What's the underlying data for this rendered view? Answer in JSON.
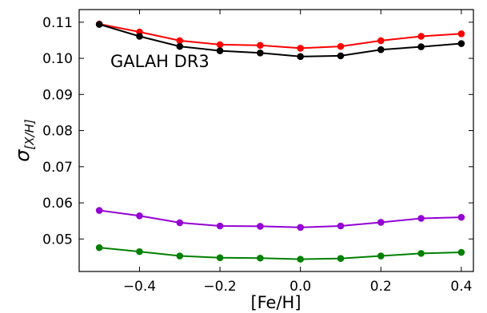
{
  "chart_data": {
    "type": "line",
    "title": "",
    "annotation": "GALAH DR3",
    "xlabel": "[Fe/H]",
    "ylabel": {
      "base": "σ",
      "subscript": "[X/H]"
    },
    "xlim": [
      -0.55,
      0.43
    ],
    "ylim": [
      0.041,
      0.1135
    ],
    "xticks": [
      -0.4,
      -0.2,
      0.0,
      0.2,
      0.4
    ],
    "xtick_labels": [
      "−0.4",
      "−0.2",
      "0.0",
      "0.2",
      "0.4"
    ],
    "yticks": [
      0.05,
      0.06,
      0.07,
      0.08,
      0.09,
      0.1,
      0.11
    ],
    "ytick_labels": [
      "0.05",
      "0.06",
      "0.07",
      "0.08",
      "0.09",
      "0.10",
      "0.11"
    ],
    "grid": false,
    "x": [
      -0.5,
      -0.4,
      -0.3,
      -0.2,
      -0.1,
      0.0,
      0.1,
      0.2,
      0.3,
      0.4
    ],
    "series": [
      {
        "color": "#ff0000",
        "values": [
          0.1095,
          0.1073,
          0.1049,
          0.1038,
          0.1036,
          0.1028,
          0.1033,
          0.1049,
          0.1061,
          0.1068
        ]
      },
      {
        "color": "#000000",
        "values": [
          0.1094,
          0.1061,
          0.1033,
          0.1021,
          0.1015,
          0.1005,
          0.1007,
          0.1024,
          0.1032,
          0.1041
        ]
      },
      {
        "color": "#9400d3",
        "values": [
          0.0579,
          0.0564,
          0.0545,
          0.0536,
          0.0535,
          0.0532,
          0.0536,
          0.0546,
          0.0557,
          0.056
        ]
      },
      {
        "color": "#008000",
        "values": [
          0.0476,
          0.0465,
          0.0453,
          0.0448,
          0.0447,
          0.0444,
          0.0446,
          0.0453,
          0.046,
          0.0463
        ]
      }
    ]
  }
}
